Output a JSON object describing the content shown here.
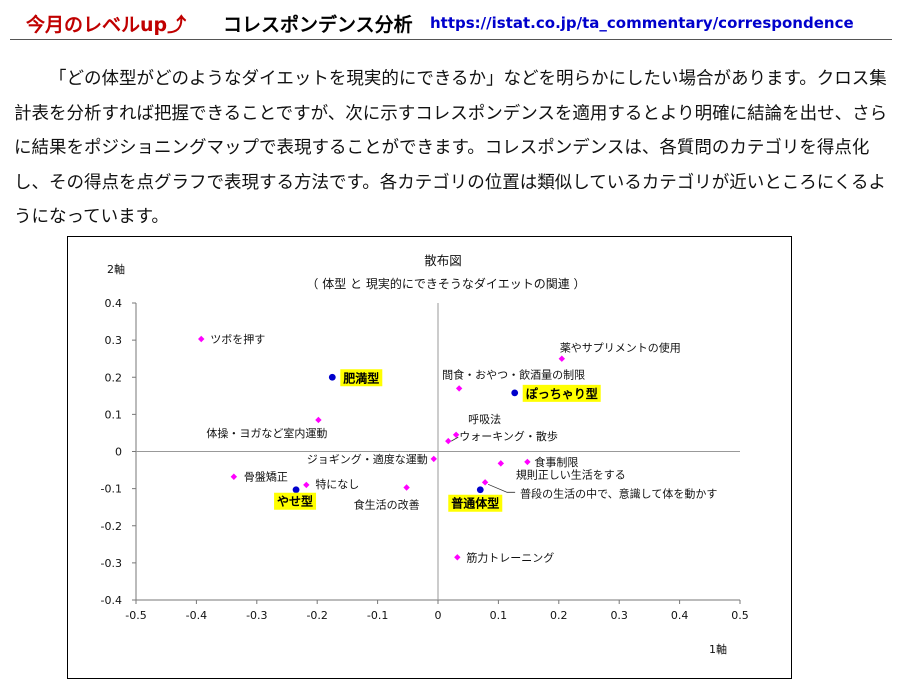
{
  "header": {
    "section": "今月のレベルup⤴",
    "title": "コレスポンデンス分析",
    "url": "https://istat.co.jp/ta_commentary/correspondence"
  },
  "body_text": "「どの体型がどのようなダイエットを現実的にできるか」などを明らかにしたい場合があります。クロス集計表を分析すれば把握できることですが、次に示すコレスポンデンスを適用するとより明確に結論を出せ、さらに結果をポジショニングマップで表現することができます。コレスポンデンスは、各質問のカテゴリを得点化し、その得点を点グラフで表現する方法です。各カテゴリの位置は類似しているカテゴリが近いところにくるようになっています。",
  "chart_data": {
    "type": "scatter",
    "title": "散布図",
    "subtitle": "（ 体型 と 現実的にできそうなダイエットの関連 ）",
    "xlabel": "1軸",
    "ylabel": "2軸",
    "xlim": [
      -0.5,
      0.5
    ],
    "ylim": [
      -0.4,
      0.4
    ],
    "x_ticks": [
      "-0.5",
      "-0.4",
      "-0.3",
      "-0.2",
      "-0.1",
      "0",
      "0.1",
      "0.2",
      "0.3",
      "0.4",
      "0.5"
    ],
    "y_ticks": [
      "0.4",
      "0.3",
      "0.2",
      "0.1",
      "0",
      "-0.1",
      "-0.2",
      "-0.3",
      "-0.4"
    ],
    "grid": false,
    "diet_color": "#ff00ff",
    "body_color": "#0000cc",
    "highlight_color": "#ffff00",
    "diet_points": [
      {
        "label": "ツボを押す",
        "x": -0.392,
        "y": 0.303
      },
      {
        "label": "薬やサプリメントの使用",
        "x": 0.205,
        "y": 0.25
      },
      {
        "label": "間食・おやつ・飲酒量の制限",
        "x": 0.035,
        "y": 0.17
      },
      {
        "label": "体操・ヨガなど室内運動",
        "x": -0.198,
        "y": 0.085
      },
      {
        "label": "呼吸法",
        "x": 0.03,
        "y": 0.045
      },
      {
        "label": "ウォーキング・散歩",
        "x": 0.017,
        "y": 0.028
      },
      {
        "label": "ジョギング・適度な運動",
        "x": -0.007,
        "y": -0.02
      },
      {
        "label": "食事制限",
        "x": 0.148,
        "y": -0.028
      },
      {
        "label": "規則正しい生活をする",
        "x": 0.104,
        "y": -0.032
      },
      {
        "label": "骨盤矯正",
        "x": -0.338,
        "y": -0.068
      },
      {
        "label": "特になし",
        "x": -0.218,
        "y": -0.09
      },
      {
        "label": "食生活の改善",
        "x": -0.052,
        "y": -0.097
      },
      {
        "label": "普段の生活の中で、意識して体を動かす",
        "x": 0.078,
        "y": -0.083
      },
      {
        "label": "筋力トレーニング",
        "x": 0.032,
        "y": -0.285
      }
    ],
    "body_points": [
      {
        "label": "肥満型",
        "x": -0.175,
        "y": 0.2
      },
      {
        "label": "ぽっちゃり型",
        "x": 0.127,
        "y": 0.158
      },
      {
        "label": "やせ型",
        "x": -0.235,
        "y": -0.103
      },
      {
        "label": "普通体型",
        "x": 0.07,
        "y": -0.103
      }
    ]
  }
}
